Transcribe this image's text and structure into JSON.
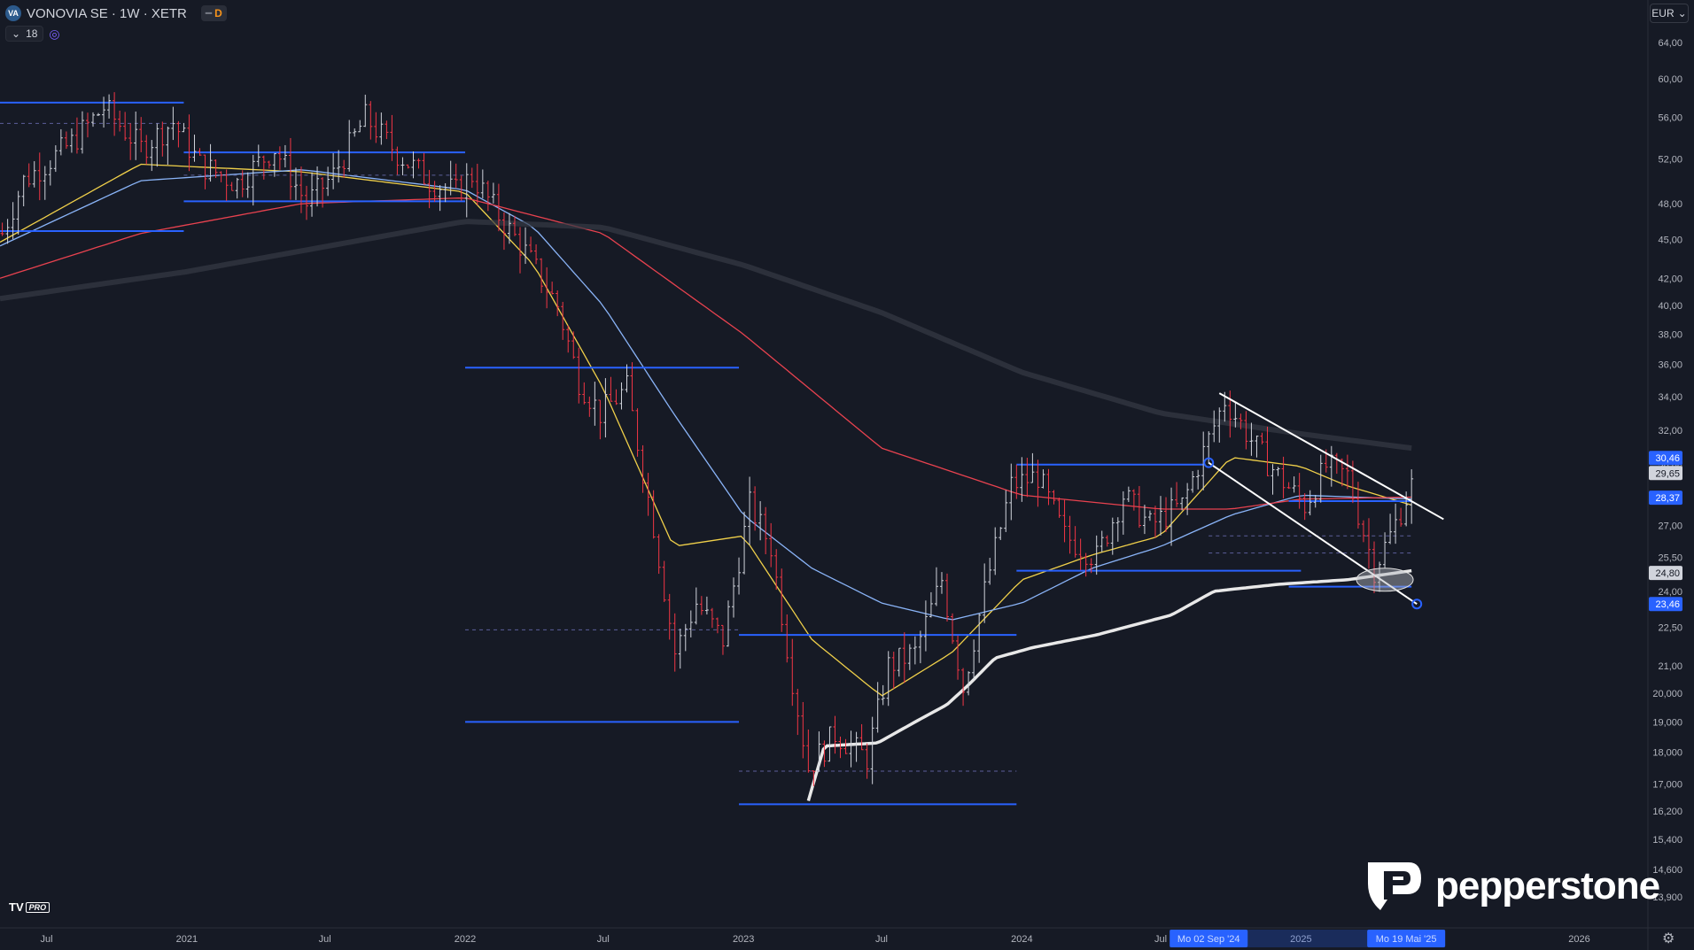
{
  "header": {
    "symbol_badge": "VA",
    "title": "VONOVIA SE · 1W · XETR",
    "toggle_label": "D",
    "indicator_count": "18"
  },
  "currency": "EUR",
  "brand": {
    "tv": "TV",
    "pro": "PRO",
    "name": "pepperstone"
  },
  "colors": {
    "bg": "#161a25",
    "up": "#d1d4dc",
    "down": "#f23645",
    "sma_fast": "#f0d04a",
    "sma_mid": "#8ab4f8",
    "sma_slow": "#e8424f",
    "sma_long": "#363a45",
    "support": "#2962ff",
    "trend": "#ffffff"
  },
  "chart_data": {
    "type": "candlestick",
    "interval": "1W",
    "scale": "log",
    "ylim": [
      13.4,
      66.5
    ],
    "y_ticks": [
      "64,00",
      "60,00",
      "56,00",
      "52,00",
      "48,00",
      "45,00",
      "42,00",
      "40,00",
      "38,00",
      "36,00",
      "34,00",
      "32,00",
      "30,00",
      "27,00",
      "25,50",
      "24,00",
      "22,50",
      "21,00",
      "20,000",
      "19,000",
      "18,000",
      "17,000",
      "16,200",
      "15,400",
      "14,600",
      "13,900"
    ],
    "x_ticks": [
      {
        "label": "Jul",
        "date": "2020-07-01"
      },
      {
        "label": "2021",
        "date": "2021-01-01"
      },
      {
        "label": "Jul",
        "date": "2021-07-01"
      },
      {
        "label": "2022",
        "date": "2022-01-01"
      },
      {
        "label": "Jul",
        "date": "2022-07-01"
      },
      {
        "label": "2023",
        "date": "2023-01-01"
      },
      {
        "label": "Jul",
        "date": "2023-07-01"
      },
      {
        "label": "2024",
        "date": "2024-01-01"
      },
      {
        "label": "Jul",
        "date": "2024-07-01"
      },
      {
        "label": "2025",
        "date": "2025-01-01"
      },
      {
        "label": "2026",
        "date": "2026-01-01"
      }
    ],
    "x_range": [
      "2020-05-01",
      "2026-04-01"
    ],
    "last_date": "2025-05-26",
    "price_path": [
      [
        "2020-05-04",
        45.5
      ],
      [
        "2020-06-01",
        50.0
      ],
      [
        "2020-08-03",
        53.5
      ],
      [
        "2020-09-14",
        57.0
      ],
      [
        "2020-11-02",
        53.0
      ],
      [
        "2020-12-14",
        55.5
      ],
      [
        "2021-01-18",
        51.5
      ],
      [
        "2021-03-08",
        49.8
      ],
      [
        "2021-04-26",
        53.0
      ],
      [
        "2021-06-07",
        48.0
      ],
      [
        "2021-07-12",
        50.5
      ],
      [
        "2021-08-23",
        56.0
      ],
      [
        "2021-10-04",
        52.5
      ],
      [
        "2021-11-15",
        50.0
      ],
      [
        "2021-12-20",
        49.0
      ],
      [
        "2022-01-10",
        50.5
      ],
      [
        "2022-02-14",
        47.0
      ],
      [
        "2022-03-21",
        44.0
      ],
      [
        "2022-05-02",
        40.0
      ],
      [
        "2022-05-30",
        35.0
      ],
      [
        "2022-06-27",
        33.0
      ],
      [
        "2022-08-01",
        34.5
      ],
      [
        "2022-09-05",
        27.0
      ],
      [
        "2022-10-03",
        21.5
      ],
      [
        "2022-10-31",
        23.5
      ],
      [
        "2022-12-05",
        22.0
      ],
      [
        "2023-01-09",
        28.0
      ],
      [
        "2023-02-06",
        26.0
      ],
      [
        "2023-03-06",
        20.5
      ],
      [
        "2023-03-27",
        17.5
      ],
      [
        "2023-05-01",
        18.6
      ],
      [
        "2023-06-12",
        17.8
      ],
      [
        "2023-07-10",
        21.0
      ],
      [
        "2023-08-14",
        21.5
      ],
      [
        "2023-09-18",
        24.5
      ],
      [
        "2023-10-16",
        20.2
      ],
      [
        "2023-11-13",
        24.0
      ],
      [
        "2023-12-18",
        29.0
      ],
      [
        "2024-01-22",
        29.5
      ],
      [
        "2024-02-26",
        26.5
      ],
      [
        "2024-04-08",
        25.5
      ],
      [
        "2024-05-13",
        28.5
      ],
      [
        "2024-06-17",
        27.0
      ],
      [
        "2024-07-29",
        28.0
      ],
      [
        "2024-09-02",
        31.5
      ],
      [
        "2024-09-23",
        33.8
      ],
      [
        "2024-11-04",
        31.0
      ],
      [
        "2024-12-02",
        29.5
      ],
      [
        "2025-01-06",
        28.0
      ],
      [
        "2025-02-03",
        30.0
      ],
      [
        "2025-03-03",
        29.5
      ],
      [
        "2025-04-07",
        25.0
      ],
      [
        "2025-04-28",
        26.5
      ],
      [
        "2025-05-26",
        29.0
      ]
    ],
    "ma_series": [
      {
        "key": "sma_fast",
        "points": [
          [
            "2020-05-01",
            44.8
          ],
          [
            "2020-11-01",
            51.5
          ],
          [
            "2021-06-01",
            50.8
          ],
          [
            "2022-01-01",
            49.0
          ],
          [
            "2022-04-01",
            43.0
          ],
          [
            "2022-07-01",
            34.5
          ],
          [
            "2022-10-01",
            26.0
          ],
          [
            "2023-01-01",
            26.5
          ],
          [
            "2023-04-01",
            22.0
          ],
          [
            "2023-07-01",
            19.9
          ],
          [
            "2023-10-01",
            21.5
          ],
          [
            "2024-01-01",
            24.5
          ],
          [
            "2024-04-01",
            25.6
          ],
          [
            "2024-07-01",
            26.5
          ],
          [
            "2024-10-01",
            30.5
          ],
          [
            "2025-01-01",
            30.0
          ],
          [
            "2025-03-01",
            29.0
          ],
          [
            "2025-05-26",
            28.0
          ]
        ]
      },
      {
        "key": "sma_mid",
        "points": [
          [
            "2020-05-01",
            44.5
          ],
          [
            "2020-11-01",
            50.0
          ],
          [
            "2021-06-01",
            51.0
          ],
          [
            "2022-01-01",
            49.2
          ],
          [
            "2022-04-01",
            46.0
          ],
          [
            "2022-07-01",
            40.0
          ],
          [
            "2022-10-01",
            33.0
          ],
          [
            "2023-01-01",
            27.5
          ],
          [
            "2023-04-01",
            25.0
          ],
          [
            "2023-07-01",
            23.5
          ],
          [
            "2023-10-01",
            22.8
          ],
          [
            "2024-01-01",
            23.5
          ],
          [
            "2024-04-01",
            25.0
          ],
          [
            "2024-07-01",
            26.0
          ],
          [
            "2024-10-01",
            27.5
          ],
          [
            "2025-01-01",
            28.5
          ],
          [
            "2025-05-26",
            28.3
          ]
        ]
      },
      {
        "key": "sma_slow",
        "points": [
          [
            "2020-05-01",
            42.0
          ],
          [
            "2020-11-01",
            45.5
          ],
          [
            "2021-06-01",
            48.0
          ],
          [
            "2022-01-01",
            48.5
          ],
          [
            "2022-07-01",
            45.5
          ],
          [
            "2023-01-01",
            38.0
          ],
          [
            "2023-07-01",
            31.0
          ],
          [
            "2024-01-01",
            28.5
          ],
          [
            "2024-07-01",
            27.8
          ],
          [
            "2024-10-01",
            27.8
          ],
          [
            "2025-01-01",
            28.3
          ],
          [
            "2025-05-26",
            28.4
          ]
        ]
      },
      {
        "key": "sma_long",
        "points": [
          [
            "2020-05-01",
            40.5
          ],
          [
            "2021-01-01",
            42.5
          ],
          [
            "2022-01-01",
            46.5
          ],
          [
            "2022-07-01",
            46.0
          ],
          [
            "2023-01-01",
            43.0
          ],
          [
            "2023-07-01",
            39.5
          ],
          [
            "2024-01-01",
            35.5
          ],
          [
            "2024-07-01",
            33.0
          ],
          [
            "2025-01-01",
            31.8
          ],
          [
            "2025-05-26",
            31.0
          ]
        ]
      }
    ],
    "vwap": [
      [
        "2023-03-27",
        16.5
      ],
      [
        "2023-04-17",
        18.2
      ],
      [
        "2023-06-26",
        18.3
      ],
      [
        "2023-08-14",
        19.0
      ],
      [
        "2023-09-25",
        19.6
      ],
      [
        "2023-10-23",
        20.3
      ],
      [
        "2023-11-27",
        21.3
      ],
      [
        "2024-01-15",
        21.7
      ],
      [
        "2024-04-08",
        22.2
      ],
      [
        "2024-07-15",
        23.0
      ],
      [
        "2024-09-09",
        24.0
      ],
      [
        "2024-12-02",
        24.3
      ],
      [
        "2025-03-03",
        24.5
      ],
      [
        "2025-05-26",
        24.9
      ]
    ],
    "support_levels": [
      {
        "from": "2020-05-01",
        "to": "2020-12-28",
        "price": 57.5
      },
      {
        "from": "2020-05-01",
        "to": "2020-12-28",
        "price": 45.7
      },
      {
        "from": "2020-12-28",
        "to": "2022-01-01",
        "price": 52.6
      },
      {
        "from": "2020-12-28",
        "to": "2022-01-01",
        "price": 48.2
      },
      {
        "from": "2022-01-01",
        "to": "2022-12-26",
        "price": 35.8
      },
      {
        "from": "2022-01-01",
        "to": "2022-12-26",
        "price": 19.0
      },
      {
        "from": "2022-12-26",
        "to": "2023-12-25",
        "price": 22.2
      },
      {
        "from": "2022-12-26",
        "to": "2023-12-25",
        "price": 16.4
      },
      {
        "from": "2023-12-25",
        "to": "2024-08-26",
        "price": 30.1
      },
      {
        "from": "2023-12-25",
        "to": "2025-01-01",
        "price": 24.9
      },
      {
        "from": "2024-12-16",
        "to": "2025-05-26",
        "price": 28.2
      },
      {
        "from": "2024-12-16",
        "to": "2025-05-26",
        "price": 24.2
      }
    ],
    "dashed_levels": [
      {
        "from": "2020-05-01",
        "to": "2020-12-28",
        "price": 55.4
      },
      {
        "from": "2020-12-28",
        "to": "2022-01-01",
        "price": 50.5
      },
      {
        "from": "2022-01-01",
        "to": "2022-12-26",
        "price": 22.4
      },
      {
        "from": "2022-12-26",
        "to": "2023-12-25",
        "price": 17.4
      },
      {
        "from": "2024-09-02",
        "to": "2025-05-26",
        "price": 26.5
      },
      {
        "from": "2024-09-02",
        "to": "2025-05-26",
        "price": 25.7
      }
    ],
    "trendlines": [
      {
        "from": [
          "2024-09-16",
          34.2
        ],
        "to": [
          "2025-07-07",
          27.3
        ]
      },
      {
        "from": [
          "2024-09-02",
          30.2
        ],
        "to": [
          "2025-06-02",
          23.46
        ]
      }
    ],
    "highlight_ellipse": {
      "date": "2025-04-21",
      "price": 24.5
    },
    "price_labels": [
      {
        "text": "30,46",
        "price": 30.46,
        "bg": "#2962ff",
        "fg": "#ffffff"
      },
      {
        "text": "29,65",
        "price": 29.65,
        "bg": "#d1d4dc",
        "fg": "#131722"
      },
      {
        "text": "28,37",
        "price": 28.37,
        "bg": "#2962ff",
        "fg": "#ffffff"
      },
      {
        "text": "24,80",
        "price": 24.8,
        "bg": "#d1d4dc",
        "fg": "#131722"
      },
      {
        "text": "23,46",
        "price": 23.46,
        "bg": "#2962ff",
        "fg": "#ffffff"
      }
    ],
    "date_labels": [
      {
        "text": "Mo 02 Sep '24",
        "date": "2024-09-02"
      },
      {
        "text": "Mo 19 Mai '25",
        "date": "2025-05-19"
      }
    ]
  }
}
